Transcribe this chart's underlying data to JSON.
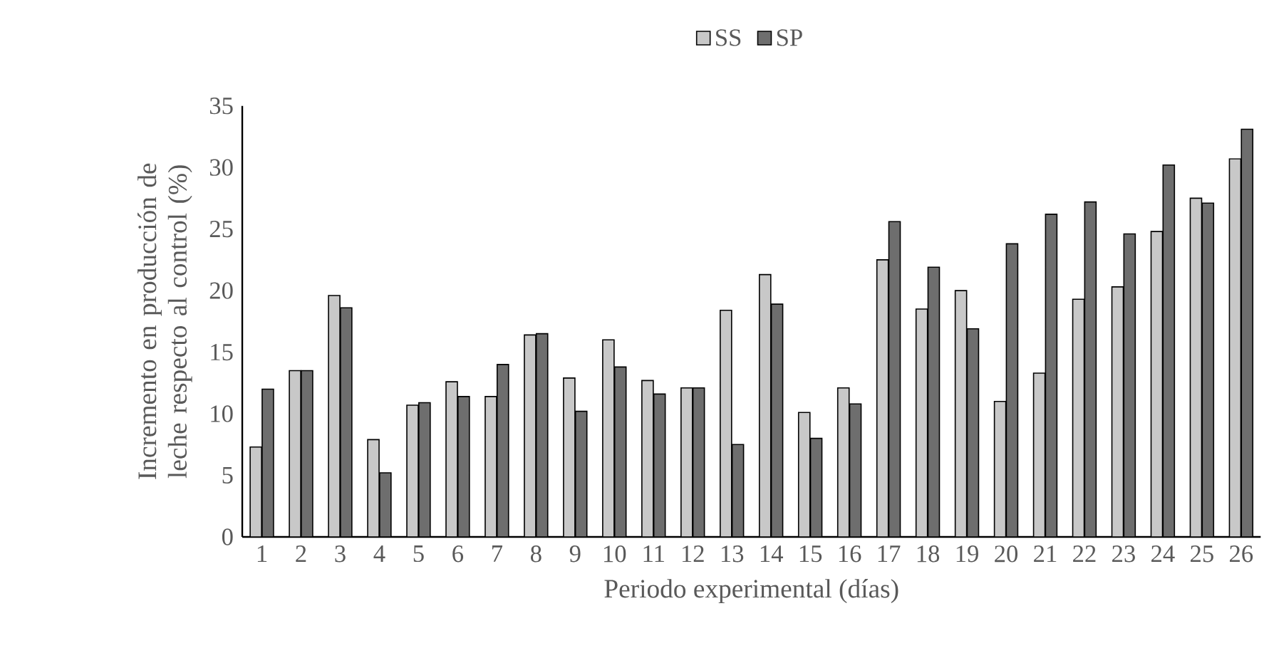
{
  "chart_data": {
    "type": "bar",
    "xlabel": "Periodo experimental (días)",
    "ylabel": "Incremento en producción de leche respecto al control (%)",
    "categories": [
      "1",
      "2",
      "3",
      "4",
      "5",
      "6",
      "7",
      "8",
      "9",
      "10",
      "11",
      "12",
      "13",
      "14",
      "15",
      "16",
      "17",
      "18",
      "19",
      "20",
      "21",
      "22",
      "23",
      "24",
      "25",
      "26"
    ],
    "series": [
      {
        "name": "SS",
        "color": "#c8c8c8",
        "values": [
          7.3,
          13.5,
          19.6,
          7.9,
          10.7,
          12.6,
          11.4,
          16.4,
          12.9,
          16.0,
          12.7,
          12.1,
          18.4,
          21.3,
          10.1,
          12.1,
          22.5,
          18.5,
          20.0,
          11.0,
          13.3,
          19.3,
          20.3,
          24.8,
          27.5,
          30.7
        ]
      },
      {
        "name": "SP",
        "color": "#6e6e6e",
        "values": [
          12.0,
          13.5,
          18.6,
          5.2,
          10.9,
          11.4,
          14.0,
          16.5,
          10.2,
          13.8,
          11.6,
          12.1,
          7.5,
          18.9,
          8.0,
          10.8,
          25.6,
          21.9,
          16.9,
          23.8,
          26.2,
          27.2,
          24.6,
          30.2,
          27.1,
          33.1
        ]
      }
    ],
    "ylim": [
      0,
      35
    ],
    "yticks": [
      0,
      5,
      10,
      15,
      20,
      25,
      30,
      35
    ],
    "legend": "top",
    "grid": false
  }
}
